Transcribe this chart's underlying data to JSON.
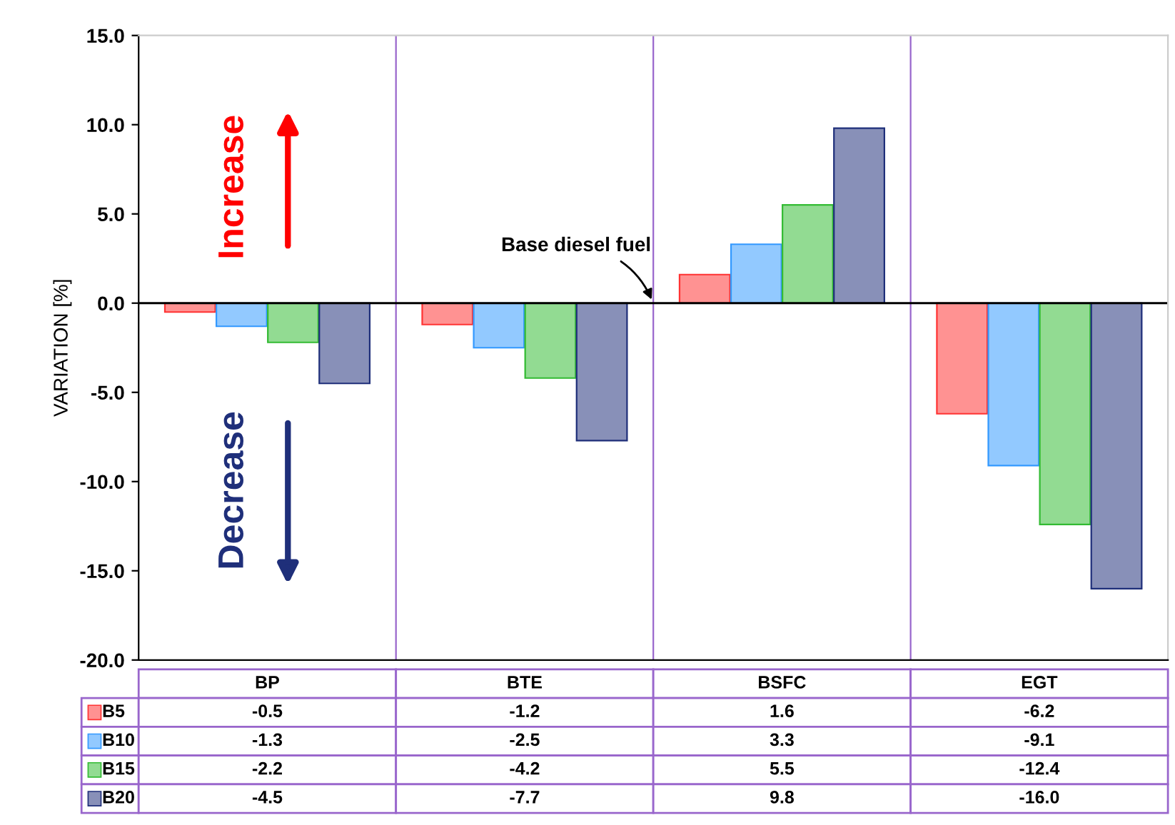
{
  "chart_data": {
    "type": "bar",
    "ylabel": "VARIATION [%]",
    "categories": [
      "BP",
      "BTE",
      "BSFC",
      "EGT"
    ],
    "series": [
      {
        "name": "B5",
        "color": "#ff3333",
        "values": [
          -0.5,
          -1.2,
          1.6,
          -6.2
        ],
        "value_labels": [
          "-0.5",
          "-1.2",
          "1.6",
          "-6.2"
        ]
      },
      {
        "name": "B10",
        "color": "#3399ff",
        "values": [
          -1.3,
          -2.5,
          3.3,
          -9.1
        ],
        "value_labels": [
          "-1.3",
          "-2.5",
          "3.3",
          "-9.1"
        ]
      },
      {
        "name": "B15",
        "color": "#33bb33",
        "values": [
          -2.2,
          -4.2,
          5.5,
          -12.4
        ],
        "value_labels": [
          "-2.2",
          "-4.2",
          "5.5",
          "-12.4"
        ]
      },
      {
        "name": "B20",
        "color": "#1f2f7a",
        "values": [
          -4.5,
          -7.7,
          9.8,
          -16.0
        ],
        "value_labels": [
          "-4.5",
          "-7.7",
          "9.8",
          "-16.0"
        ]
      }
    ],
    "ylim": [
      -20,
      15
    ],
    "yticks": [
      {
        "value": -20,
        "label": "-20.0"
      },
      {
        "value": -15,
        "label": "-15.0"
      },
      {
        "value": -10,
        "label": "-10.0"
      },
      {
        "value": -5,
        "label": "-5.0"
      },
      {
        "value": 0,
        "label": "0.0"
      },
      {
        "value": 5,
        "label": "5.0"
      },
      {
        "value": 10,
        "label": "10.0"
      },
      {
        "value": 15,
        "label": "15.0"
      }
    ],
    "legend": "bottom",
    "grid": false,
    "annotations": [
      "Increase",
      "Decrease",
      {
        "text": "Base diesel fuel",
        "y": 0
      }
    ]
  }
}
